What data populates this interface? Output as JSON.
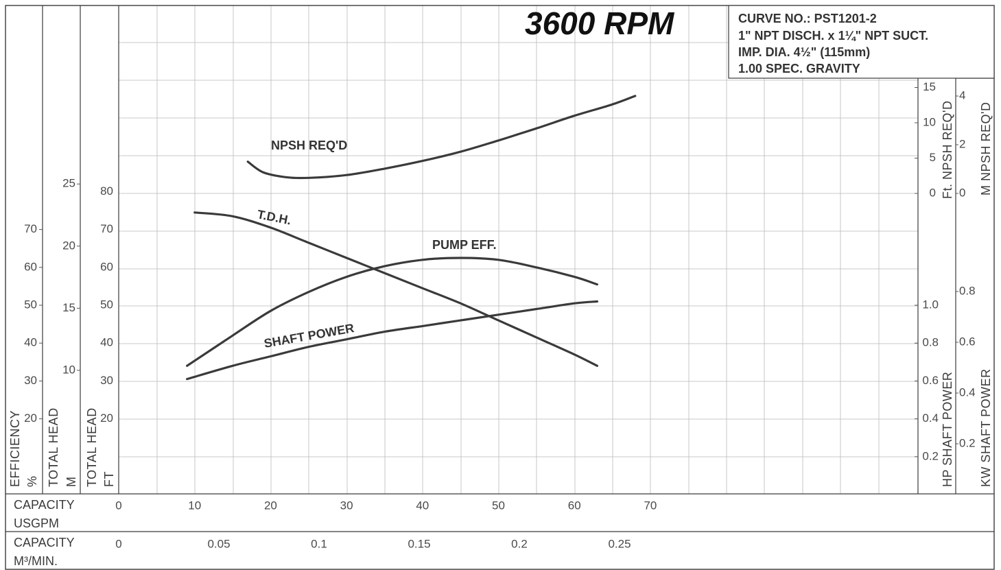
{
  "chart_data": {
    "type": "line",
    "title": "3600 RPM",
    "info_lines": [
      "CURVE NO.: PST1201-2",
      "1\" NPT DISCH. x 1¼\" NPT SUCT.",
      "IMP. DIA. 4½\" (115mm)",
      "1.00 SPEC. GRAVITY"
    ],
    "x_axes": [
      {
        "label": "CAPACITY",
        "unit": "USGPM",
        "ticks": [
          "0",
          "10",
          "20",
          "30",
          "40",
          "50",
          "60",
          "70"
        ],
        "range": [
          0,
          70
        ]
      },
      {
        "label": "CAPACITY",
        "unit": "M³/MIN.",
        "ticks": [
          "0",
          "0.05",
          "0.1",
          "0.15",
          "0.2",
          "0.25"
        ],
        "range": [
          0,
          0.265
        ]
      }
    ],
    "y_axes_left": [
      {
        "label": "EFFICIENCY",
        "unit": "%",
        "ticks": [
          "20",
          "30",
          "40",
          "50",
          "60",
          "70"
        ]
      },
      {
        "label": "TOTAL HEAD",
        "unit": "M",
        "ticks": [
          "10",
          "15",
          "20",
          "25"
        ]
      },
      {
        "label": "TOTAL HEAD",
        "unit": "FT",
        "ticks": [
          "20",
          "30",
          "40",
          "50",
          "60",
          "70",
          "80"
        ],
        "range": [
          0,
          105
        ]
      }
    ],
    "y_axes_right": [
      {
        "label": "Ft. NPSH REQ'D",
        "ticks": [
          "0",
          "5",
          "10",
          "15"
        ]
      },
      {
        "label": "M NPSH REQ'D",
        "ticks": [
          "0",
          "2",
          "4"
        ]
      },
      {
        "label": "HP SHAFT POWER",
        "ticks": [
          "0.2",
          "0.4",
          "0.6",
          "0.8",
          "1.0"
        ]
      },
      {
        "label": "KW SHAFT POWER",
        "ticks": [
          "0.2",
          "0.4",
          "0.6",
          "0.8"
        ]
      }
    ],
    "series": [
      {
        "name": "NPSH REQ'D",
        "unit": "ft",
        "x": [
          17,
          19,
          22,
          25,
          30,
          35,
          40,
          45,
          50,
          55,
          60,
          65,
          68
        ],
        "y": [
          4.5,
          3.0,
          2.3,
          2.2,
          2.6,
          3.5,
          4.6,
          5.9,
          7.5,
          9.2,
          11.0,
          12.6,
          13.8
        ]
      },
      {
        "name": "T.D.H.",
        "unit": "ft",
        "x": [
          10,
          15,
          20,
          25,
          30,
          35,
          40,
          45,
          50,
          55,
          60,
          63
        ],
        "y": [
          74.5,
          73.5,
          70.5,
          66.5,
          62.5,
          58.5,
          54.5,
          50.5,
          46,
          41.5,
          37,
          34
        ]
      },
      {
        "name": "PUMP EFF.",
        "unit": "%",
        "x": [
          9,
          15,
          20,
          25,
          30,
          35,
          40,
          45,
          50,
          55,
          60,
          63
        ],
        "y": [
          34,
          42,
          48.5,
          53.5,
          57.5,
          60.3,
          62,
          62.5,
          62,
          60,
          57.5,
          55.5
        ]
      },
      {
        "name": "SHAFT POWER",
        "unit": "HP",
        "x": [
          9,
          15,
          20,
          25,
          30,
          35,
          40,
          45,
          50,
          55,
          60,
          63
        ],
        "y": [
          0.61,
          0.68,
          0.73,
          0.78,
          0.82,
          0.86,
          0.89,
          0.92,
          0.95,
          0.98,
          1.01,
          1.02
        ]
      }
    ]
  }
}
